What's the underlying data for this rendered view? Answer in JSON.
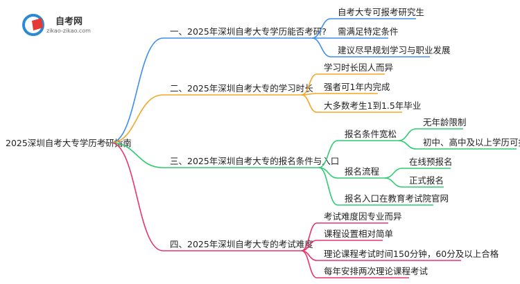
{
  "logo": {
    "name": "自考网",
    "url_text": "zikao-zikao.com"
  },
  "colors": {
    "b1": "#3d8ef0",
    "b2": "#f5a623",
    "b3": "#2ecc71",
    "b4": "#e8336d"
  },
  "root": "2025深圳自考大专学历考研指南",
  "branches": [
    {
      "label": "一、2025年深圳自考大专学历能否考研?",
      "children": [
        {
          "label": "自考大专可报考研究生"
        },
        {
          "label": "需满足特定条件"
        },
        {
          "label": "建议尽早规划学习与职业发展"
        }
      ]
    },
    {
      "label": "二、2025年深圳自考大专的学习时长",
      "children": [
        {
          "label": "学习时长因人而异"
        },
        {
          "label": "强者可1年内完成"
        },
        {
          "label": "大多数考生1到1.5年毕业"
        }
      ]
    },
    {
      "label": "三、2025年深圳自考大专的报名条件与入口",
      "children": [
        {
          "label": "报名条件宽松",
          "children": [
            {
              "label": "无年龄限制"
            },
            {
              "label": "初中、高中及以上学历可报名"
            }
          ]
        },
        {
          "label": "报名流程",
          "children": [
            {
              "label": "在线预报名"
            },
            {
              "label": "正式报名"
            }
          ]
        },
        {
          "label": "报名入口在教育考试院官网"
        }
      ]
    },
    {
      "label": "四、2025年深圳自考大专的考试难度",
      "children": [
        {
          "label": "考试难度因专业而异"
        },
        {
          "label": "课程设置相对简单"
        },
        {
          "label": "理论课程考试时间150分钟，60分及以上合格"
        },
        {
          "label": "每年安排两次理论课程考试"
        }
      ]
    }
  ]
}
